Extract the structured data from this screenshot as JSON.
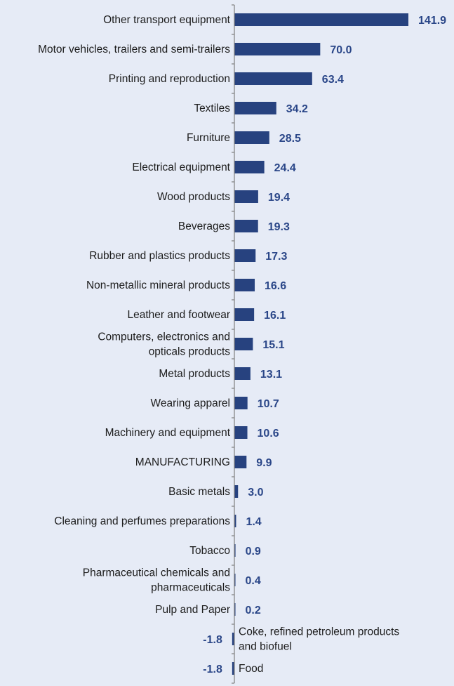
{
  "colors": {
    "background": "#e6ebf6",
    "bar": "#27427f",
    "label": "#2a4688",
    "text": "#1c1c1c",
    "axis": "#7f7f7f"
  },
  "chart_data": {
    "type": "bar",
    "orientation": "horizontal",
    "title": "",
    "xlabel": "",
    "ylabel": "",
    "grid": false,
    "data_labels": true,
    "categories": [
      "Other transport equipment",
      "Motor vehicles, trailers and semi-trailers",
      "Printing and reproduction",
      "Textiles",
      "Furniture",
      "Electrical equipment",
      "Wood products",
      "Beverages",
      "Rubber and plastics products",
      "Non-metallic mineral products",
      "Leather and footwear",
      "Computers, electronics and opticals products",
      "Metal products",
      "Wearing apparel",
      "Machinery and equipment",
      "MANUFACTURING",
      "Basic metals",
      "Cleaning and perfumes preparations",
      "Tobacco",
      "Pharmaceutical chemicals and pharmaceuticals",
      "Pulp and Paper",
      "Coke, refined petroleum products and biofuel",
      "Food"
    ],
    "category_lines": [
      [
        "Other transport equipment"
      ],
      [
        "Motor vehicles, trailers and semi-trailers"
      ],
      [
        "Printing and reproduction"
      ],
      [
        "Textiles"
      ],
      [
        "Furniture"
      ],
      [
        "Electrical equipment"
      ],
      [
        "Wood products"
      ],
      [
        "Beverages"
      ],
      [
        "Rubber and plastics products"
      ],
      [
        "Non-metallic mineral products"
      ],
      [
        "Leather and footwear"
      ],
      [
        "Computers, electronics and",
        "opticals products"
      ],
      [
        "Metal products"
      ],
      [
        "Wearing apparel"
      ],
      [
        "Machinery and equipment"
      ],
      [
        "MANUFACTURING"
      ],
      [
        "Basic metals"
      ],
      [
        "Cleaning and perfumes preparations"
      ],
      [
        "Tobacco"
      ],
      [
        "Pharmaceutical chemicals and",
        "pharmaceuticals"
      ],
      [
        "Pulp and Paper"
      ],
      [
        "Coke, refined petroleum products",
        "and biofuel"
      ],
      [
        "Food"
      ]
    ],
    "values": [
      141.9,
      70.0,
      63.4,
      34.2,
      28.5,
      24.4,
      19.4,
      19.3,
      17.3,
      16.6,
      16.1,
      15.1,
      13.1,
      10.7,
      10.6,
      9.9,
      3.0,
      1.4,
      0.9,
      0.4,
      0.2,
      -1.8,
      -1.8
    ],
    "value_labels": [
      "141.9",
      "70.0",
      "63.4",
      "34.2",
      "28.5",
      "24.4",
      "19.4",
      "19.3",
      "17.3",
      "16.6",
      "16.1",
      "15.1",
      "13.1",
      "10.7",
      "10.6",
      "9.9",
      "3.0",
      "1.4",
      "0.9",
      "0.4",
      "0.2",
      "-1.8",
      "-1.8"
    ],
    "xlim": [
      -1.8,
      141.9
    ]
  }
}
